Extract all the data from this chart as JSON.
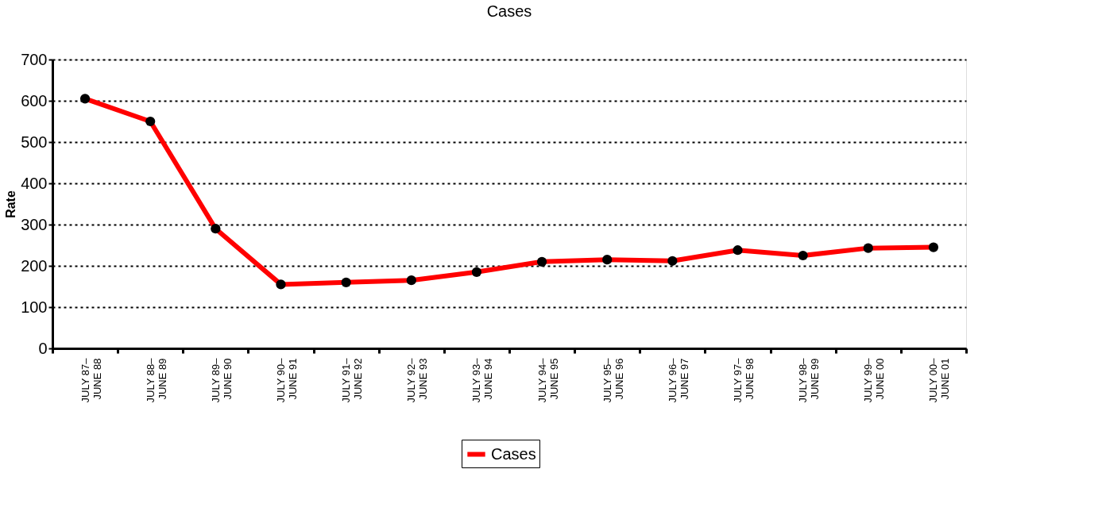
{
  "chart_data": {
    "type": "line",
    "title": "Cases",
    "ylabel": "Rate",
    "categories": [
      "JULY 87–\nJUNE 88",
      "JULY 88–\nJUNE 89",
      "JULY 89–\nJUNE 90",
      "JULY 90–\nJUNE 91",
      "JULY 91–\nJUNE 92",
      "JULY 92–\nJUNE 93",
      "JULY 93–\nJUNE 94",
      "JULY 94–\nJUNE 95",
      "JULY 95–\nJUNE 96",
      "JULY 96–\nJUNE 97",
      "JULY 97–\nJUNE 98",
      "JULY 98–\nJUNE 99",
      "JULY 99–\nJUNE 00",
      "JULY 00–\nJUNE 01"
    ],
    "series": [
      {
        "name": "Cases",
        "color": "#ff0000",
        "values": [
          605,
          550,
          290,
          155,
          160,
          165,
          185,
          210,
          215,
          212,
          238,
          225,
          243,
          245
        ]
      }
    ],
    "ylim": [
      0,
      700
    ],
    "yticks": [
      0,
      100,
      200,
      300,
      400,
      500,
      600,
      700
    ],
    "grid": "y",
    "legend": "bottom",
    "marker": "circle",
    "line_style": "solid"
  }
}
